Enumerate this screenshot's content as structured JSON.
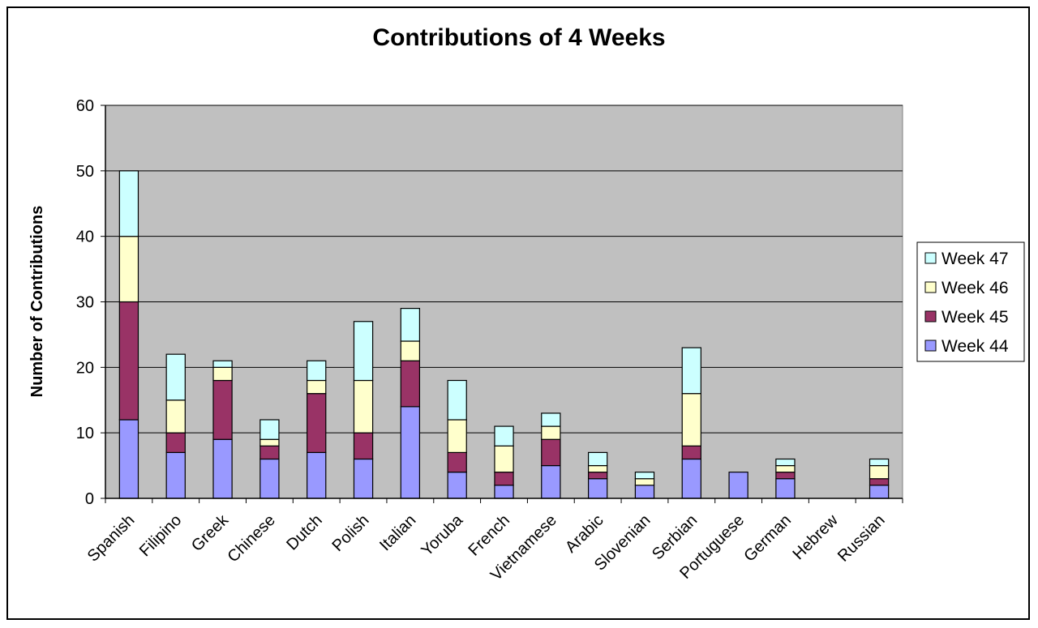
{
  "chart_data": {
    "type": "bar",
    "stacked": true,
    "title": "Contributions of 4 Weeks",
    "xlabel": "",
    "ylabel": "Number of Contributions",
    "ylim": [
      0,
      60
    ],
    "yticks": [
      "0",
      "10",
      "20",
      "30",
      "40",
      "50",
      "60"
    ],
    "grid": true,
    "legend_position": "right",
    "categories": [
      "Spanish",
      "Filipino",
      "Greek",
      "Chinese",
      "Dutch",
      "Polish",
      "Italian",
      "Yoruba",
      "French",
      "Vietnamese",
      "Arabic",
      "Slovenian",
      "Serbian",
      "Portuguese",
      "German",
      "Hebrew",
      "Russian"
    ],
    "series": [
      {
        "name": "Week 44",
        "color": "#9999FF",
        "values": [
          12,
          7,
          9,
          6,
          7,
          6,
          14,
          4,
          2,
          5,
          3,
          2,
          6,
          4,
          3,
          0,
          2
        ]
      },
      {
        "name": "Week 45",
        "color": "#993366",
        "values": [
          18,
          3,
          9,
          2,
          9,
          4,
          7,
          3,
          2,
          4,
          1,
          0,
          2,
          0,
          1,
          0,
          1
        ]
      },
      {
        "name": "Week 46",
        "color": "#FFFFCC",
        "values": [
          10,
          5,
          2,
          1,
          2,
          8,
          3,
          5,
          4,
          2,
          1,
          1,
          8,
          0,
          1,
          0,
          2
        ]
      },
      {
        "name": "Week 47",
        "color": "#CCFFFF",
        "values": [
          10,
          7,
          1,
          3,
          3,
          9,
          5,
          6,
          3,
          2,
          2,
          1,
          7,
          0,
          1,
          0,
          1
        ]
      }
    ],
    "plot_background": "#C0C0C0"
  }
}
